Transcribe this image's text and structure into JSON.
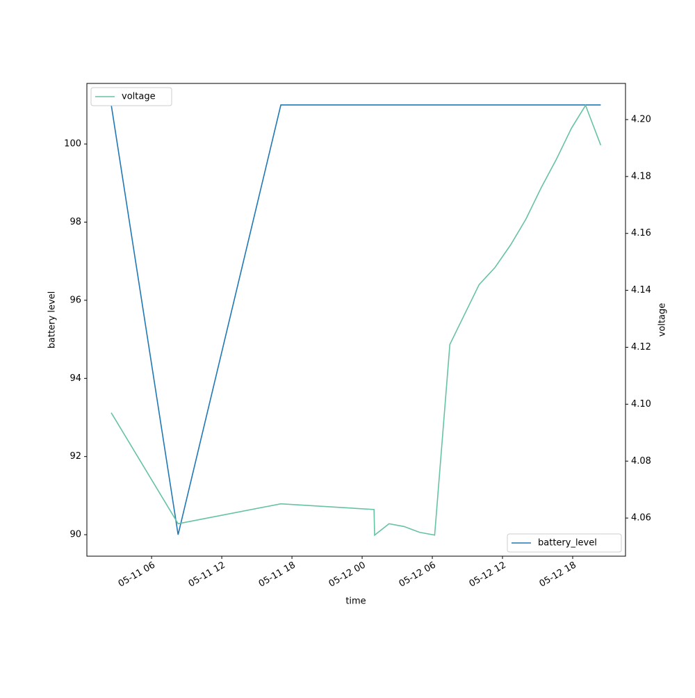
{
  "chart_data": {
    "type": "line",
    "xlabel": "time",
    "ylabel": "battery level",
    "y2label": "voltage",
    "xlim": [
      "05-11 00:28",
      "05-12 22:31"
    ],
    "xticks": [
      "05-11 06",
      "05-11 12",
      "05-11 18",
      "05-12 00",
      "05-12 06",
      "05-12 12",
      "05-12 18"
    ],
    "ylim": [
      89.45,
      101.55
    ],
    "yticks": [
      90,
      92,
      94,
      96,
      98,
      100
    ],
    "y2lim": [
      4.0466,
      4.2127
    ],
    "y2ticks": [
      4.06,
      4.08,
      {
        "value": 4.1,
        "label": "4.10"
      },
      4.12,
      4.14,
      4.16,
      4.18,
      {
        "value": 4.2,
        "label": "4.20"
      }
    ],
    "series": [
      {
        "name": "battery_level",
        "color": "#1f77b4",
        "legend_loc": "lower right",
        "x": [
          "05-11 02:33",
          "05-11 08:16",
          "05-11 17:03",
          "05-12 20:24"
        ],
        "values": [
          101,
          90,
          101,
          101
        ]
      },
      {
        "name": "voltage",
        "color": "#66c2a5",
        "axis": "y2",
        "legend_loc": "upper left",
        "x": [
          "05-11 02:33",
          "05-11 08:16",
          "05-11 17:03",
          "05-12 01:01",
          "05-12 01:04",
          "05-12 02:18",
          "05-12 03:36",
          "05-12 04:54",
          "05-12 06:12",
          "05-12 07:30",
          "05-12 10:00",
          "05-12 11:21",
          "05-12 12:42",
          "05-12 14:00",
          "05-12 15:18",
          "05-12 16:36",
          "05-12 17:54",
          "05-12 19:06",
          "05-12 20:24"
        ],
        "values": [
          4.097,
          4.058,
          4.065,
          4.063,
          4.054,
          4.058,
          4.057,
          4.055,
          4.054,
          4.121,
          4.142,
          4.148,
          4.156,
          4.165,
          4.176,
          4.186,
          4.197,
          4.205,
          4.191
        ]
      }
    ]
  }
}
